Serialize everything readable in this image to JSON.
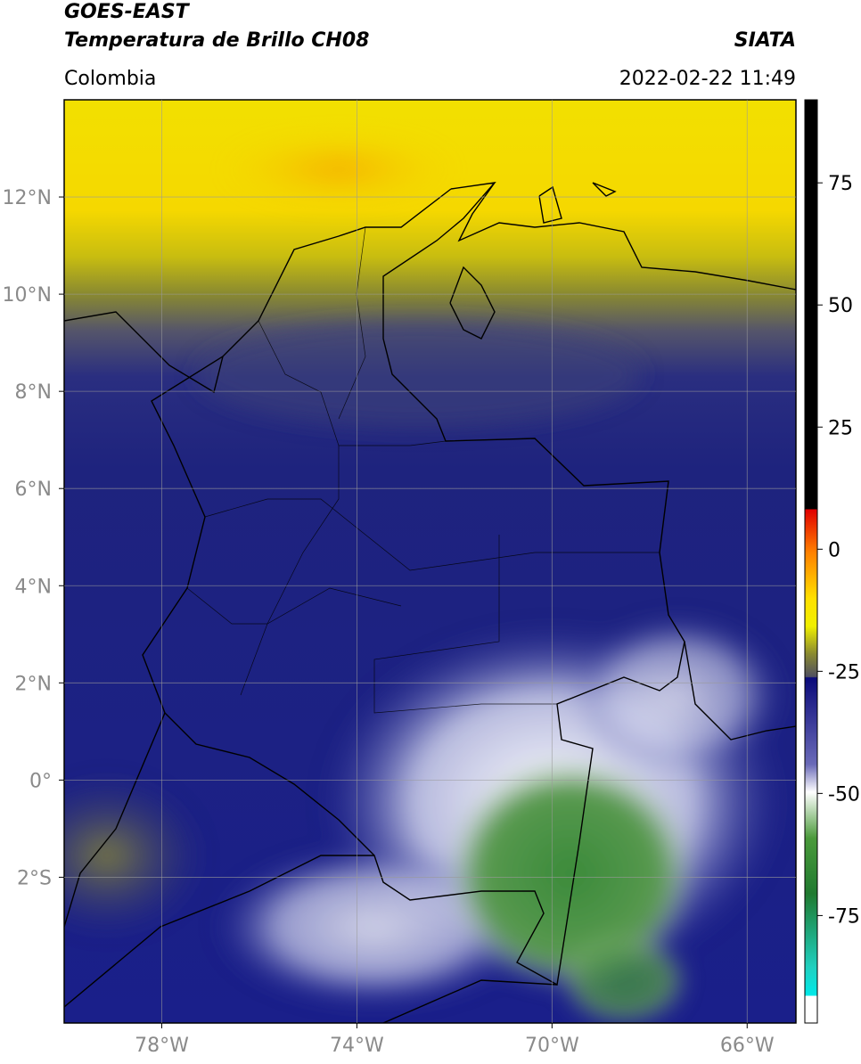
{
  "header": {
    "satellite": "GOES-EAST",
    "product": "Temperatura de Brillo CH08",
    "source": "SIATA",
    "region": "Colombia",
    "datetime": "2022-02-22 11:49"
  },
  "map": {
    "xlim": [
      -80,
      -65
    ],
    "ylim": [
      -5,
      14
    ],
    "xticks": [
      {
        "value": -78,
        "label": "78°W"
      },
      {
        "value": -74,
        "label": "74°W"
      },
      {
        "value": -70,
        "label": "70°W"
      },
      {
        "value": -66,
        "label": "66°W"
      }
    ],
    "yticks": [
      {
        "value": 12,
        "label": "12°N"
      },
      {
        "value": 10,
        "label": "10°N"
      },
      {
        "value": 8,
        "label": "8°N"
      },
      {
        "value": 6,
        "label": "6°N"
      },
      {
        "value": 4,
        "label": "4°N"
      },
      {
        "value": 2,
        "label": "2°N"
      },
      {
        "value": 0,
        "label": "0°"
      },
      {
        "value": -2,
        "label": "2°S"
      }
    ],
    "grid": true
  },
  "colorbar": {
    "lim": [
      -97,
      92
    ],
    "ticks": [
      75,
      50,
      25,
      0,
      -25,
      -50,
      -75
    ]
  }
}
